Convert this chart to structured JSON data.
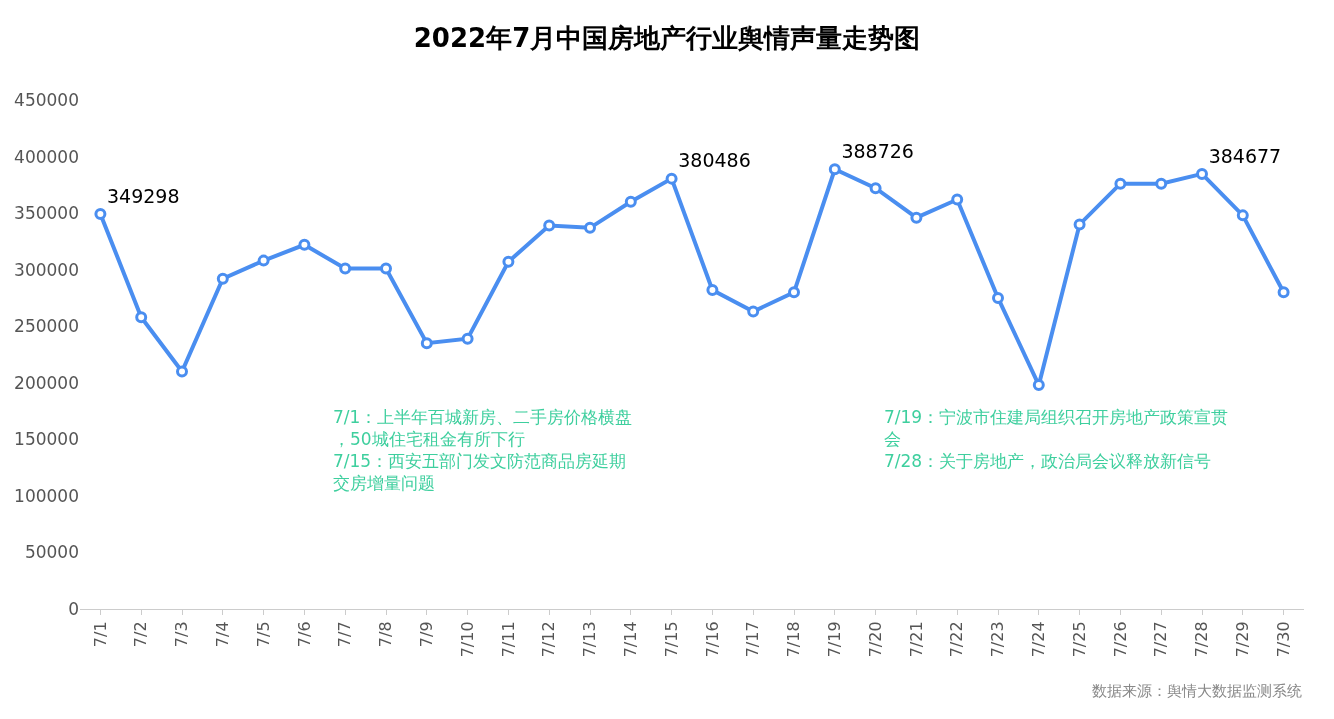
{
  "chart_data": {
    "type": "line",
    "title": "2022年7月中国房地产行业舆情声量走势图",
    "categories": [
      "7/1",
      "7/2",
      "7/3",
      "7/4",
      "7/5",
      "7/6",
      "7/7",
      "7/8",
      "7/9",
      "7/10",
      "7/11",
      "7/12",
      "7/13",
      "7/14",
      "7/15",
      "7/16",
      "7/17",
      "7/18",
      "7/19",
      "7/20",
      "7/21",
      "7/22",
      "7/23",
      "7/24",
      "7/25",
      "7/26",
      "7/27",
      "7/28",
      "7/29",
      "7/30"
    ],
    "series": [
      {
        "color": "#4a8ef0",
        "values": [
          349298,
          258000,
          210000,
          292000,
          308000,
          322000,
          301000,
          301000,
          235000,
          239000,
          307000,
          339000,
          337000,
          360000,
          380486,
          282000,
          263000,
          280000,
          388726,
          372000,
          346000,
          362000,
          275000,
          198000,
          340000,
          376000,
          376000,
          384677,
          348000,
          280000
        ],
        "value_labels": [
          "349298",
          null,
          null,
          null,
          null,
          null,
          null,
          null,
          null,
          null,
          null,
          null,
          null,
          null,
          "380486",
          null,
          null,
          null,
          "388726",
          null,
          null,
          null,
          null,
          null,
          null,
          null,
          null,
          "384677",
          null,
          null
        ]
      }
    ],
    "ylim": [
      0,
      450000
    ],
    "yticks": [
      0,
      50000,
      100000,
      150000,
      200000,
      250000,
      300000,
      350000,
      400000,
      450000
    ],
    "legend": false,
    "marker": "circle",
    "line_style": "solid",
    "annotations": [
      "7/1：上半年百城新房、二手房价格横盘，50城住宅租金有所下行",
      "7/15：西安五部门发文防范商品房延期交房增量问题",
      "7/19：宁波市住建局组织召开房地产政策宣贯会",
      "7/28：关于房地产，政治局会议释放新信号",
      "数据来源：舆情大数据监测系统"
    ]
  }
}
